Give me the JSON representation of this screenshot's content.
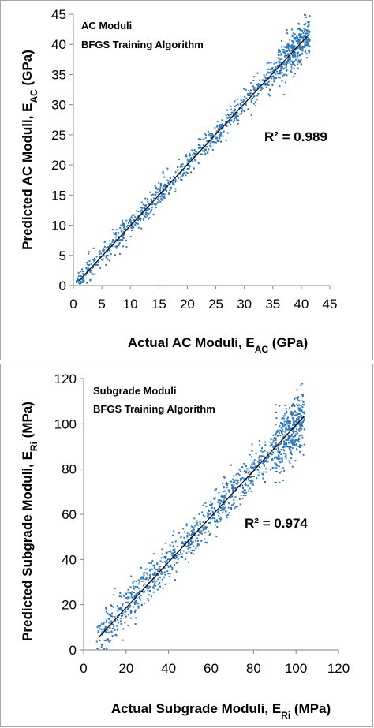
{
  "chart_data": [
    {
      "type": "scatter",
      "title": "",
      "annotations": [
        "AC Moduli",
        "BFGS Training Algorithm"
      ],
      "r2_label": "R² = 0.989",
      "xlabel": "Actual AC Moduli, E",
      "xlabel_sub": "AC",
      "xlabel_unit": " (GPa)",
      "ylabel": "Predicted AC Moduli, E",
      "ylabel_sub": "AC",
      "ylabel_unit": " (GPa)",
      "xlim": [
        0,
        45
      ],
      "ylim": [
        0,
        45
      ],
      "xticks": [
        0,
        5,
        10,
        15,
        20,
        25,
        30,
        35,
        40,
        45
      ],
      "yticks": [
        0,
        5,
        10,
        15,
        20,
        25,
        30,
        35,
        40,
        45
      ],
      "grid": false,
      "marker_color": "#2e75b6",
      "fit_color": "#000000",
      "trendline": {
        "x": [
          1,
          41
        ],
        "y": [
          0.8,
          41.3
        ]
      },
      "series": [
        {
          "x_range": [
            0.5,
            41.5
          ],
          "y_spread": 1.1,
          "y_spread_high": 1.7,
          "count": 1100,
          "cluster_high_start": 36
        }
      ]
    },
    {
      "type": "scatter",
      "title": "",
      "annotations": [
        "Subgrade Moduli",
        "BFGS Training Algorithm"
      ],
      "r2_label": "R² = 0.974",
      "xlabel": "Actual Subgrade Moduli, E",
      "xlabel_sub": "Ri",
      "xlabel_unit": " (MPa)",
      "ylabel": "Predicted Subgrade Moduli, E",
      "ylabel_sub": "Ri",
      "ylabel_unit": " (MPa)",
      "xlim": [
        0,
        120
      ],
      "ylim": [
        0,
        120
      ],
      "xticks": [
        0,
        20,
        40,
        60,
        80,
        100,
        120
      ],
      "yticks": [
        0,
        20,
        40,
        60,
        80,
        100,
        120
      ],
      "grid": false,
      "marker_color": "#2e75b6",
      "fit_color": "#000000",
      "trendline": {
        "x": [
          7,
          104
        ],
        "y": [
          5.5,
          103.5
        ]
      },
      "series": [
        {
          "x_range": [
            6,
            104
          ],
          "y_spread": 4.5,
          "y_spread_high": 7,
          "count": 1200,
          "cluster_high_start": 90
        }
      ]
    }
  ]
}
